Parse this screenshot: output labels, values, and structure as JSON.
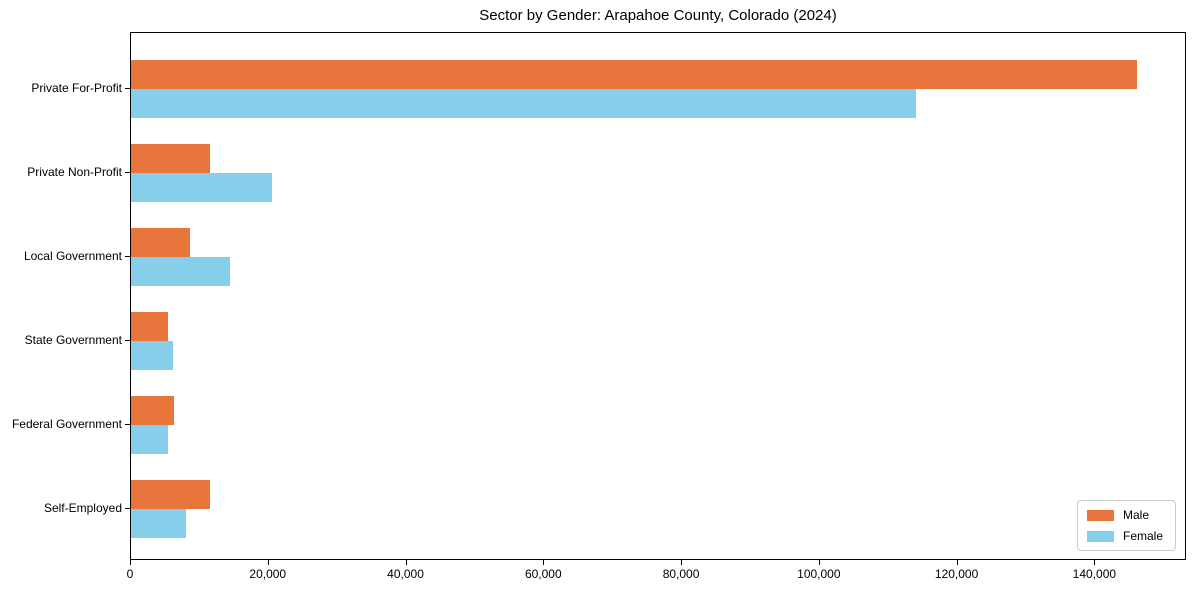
{
  "chart_data": {
    "type": "bar",
    "orientation": "horizontal",
    "title": "Sector by Gender: Arapahoe County, Colorado (2024)",
    "xlabel": "",
    "ylabel": "",
    "categories": [
      "Private For-Profit",
      "Private Non-Profit",
      "Local Government",
      "State Government",
      "Federal Government",
      "Self-Employed"
    ],
    "series": [
      {
        "name": "Male",
        "color": "#e8763c",
        "values": [
          146000,
          11400,
          8600,
          5300,
          6300,
          11400
        ]
      },
      {
        "name": "Female",
        "color": "#87ceeb",
        "values": [
          114000,
          20500,
          14300,
          6100,
          5300,
          8000
        ]
      }
    ],
    "xlim": [
      0,
      153300
    ],
    "x_ticks": [
      0,
      20000,
      40000,
      60000,
      80000,
      100000,
      120000,
      140000
    ],
    "x_tick_labels": [
      "0",
      "20,000",
      "40,000",
      "60,000",
      "80,000",
      "100,000",
      "120,000",
      "140,000"
    ],
    "grid": false,
    "legend": {
      "position": "lower right",
      "entries": [
        "Male",
        "Female"
      ]
    }
  },
  "colors": {
    "male": "#e8763c",
    "female": "#87ceeb",
    "axis": "#000000",
    "legend_border": "#cccccc",
    "background": "#ffffff"
  }
}
